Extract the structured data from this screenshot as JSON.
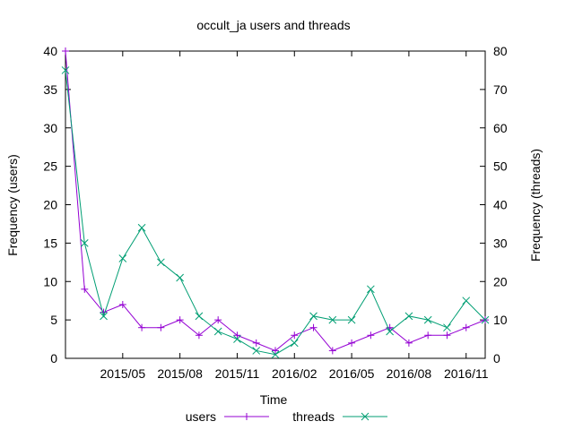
{
  "chart_data": {
    "type": "line",
    "title": "occult_ja users and threads",
    "xlabel": "Time",
    "ylabel": "Frequency (users)",
    "y2label": "Frequency (threads)",
    "x": [
      "2015-02",
      "2015-03",
      "2015-04",
      "2015-05",
      "2015-06",
      "2015-07",
      "2015-08",
      "2015-09",
      "2015-10",
      "2015-11",
      "2015-12",
      "2016-01",
      "2016-02",
      "2016-03",
      "2016-04",
      "2016-05",
      "2016-06",
      "2016-07",
      "2016-08",
      "2016-09",
      "2016-10",
      "2016-11",
      "2016-12"
    ],
    "xticks": [
      {
        "label": "2015/05",
        "x": "2015-05"
      },
      {
        "label": "2015/08",
        "x": "2015-08"
      },
      {
        "label": "2015/11",
        "x": "2015-11"
      },
      {
        "label": "2016/02",
        "x": "2016-02"
      },
      {
        "label": "2016/05",
        "x": "2016-05"
      },
      {
        "label": "2016/08",
        "x": "2016-08"
      },
      {
        "label": "2016/11",
        "x": "2016-11"
      }
    ],
    "ylim": [
      0,
      40
    ],
    "y2lim": [
      0,
      80
    ],
    "yticks": [
      "0",
      "5",
      "10",
      "15",
      "20",
      "25",
      "30",
      "35",
      "40"
    ],
    "y2ticks": [
      "0",
      "10",
      "20",
      "30",
      "40",
      "50",
      "60",
      "70",
      "80"
    ],
    "grid": false,
    "legend_position": "bottom",
    "series": [
      {
        "name": "users",
        "axis": "left",
        "marker": "+",
        "color": "#9400d3",
        "values": [
          40,
          9,
          6,
          7,
          4,
          4,
          5,
          3,
          5,
          3,
          2,
          1,
          3,
          4,
          1,
          2,
          3,
          4,
          2,
          3,
          3,
          4,
          5
        ]
      },
      {
        "name": "threads",
        "axis": "right",
        "marker": "x",
        "color": "#009e73",
        "values": [
          75,
          30,
          11,
          26,
          34,
          25,
          21,
          11,
          7,
          5,
          2,
          1,
          4,
          11,
          10,
          10,
          18,
          7,
          11,
          10,
          8,
          15,
          10
        ]
      }
    ]
  }
}
